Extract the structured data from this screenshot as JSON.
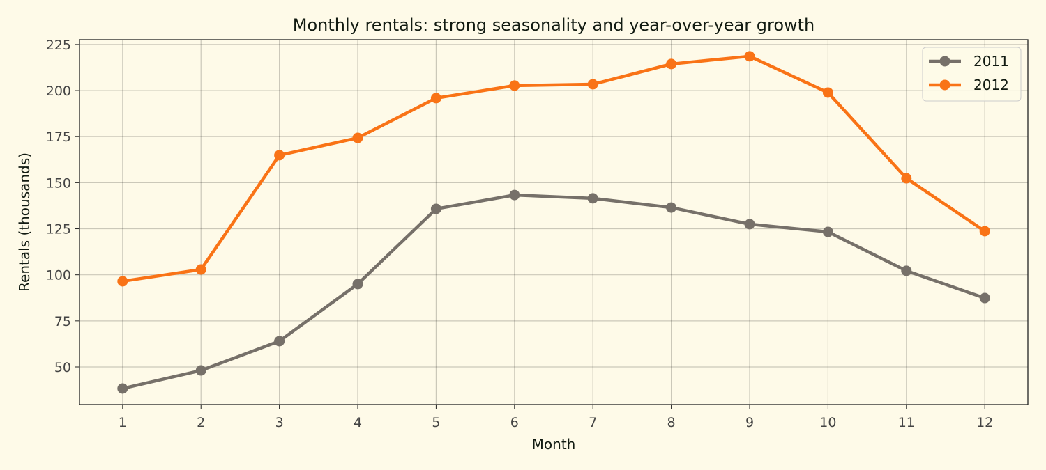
{
  "chart_data": {
    "type": "line",
    "title": "Monthly rentals: strong seasonality and year-over-year growth",
    "xlabel": "Month",
    "ylabel": "Rentals (thousands)",
    "x": [
      1,
      2,
      3,
      4,
      5,
      6,
      7,
      8,
      9,
      10,
      11,
      12
    ],
    "xticks": [
      "1",
      "2",
      "3",
      "4",
      "5",
      "6",
      "7",
      "8",
      "9",
      "10",
      "11",
      "12"
    ],
    "yticks": [
      50,
      75,
      100,
      125,
      150,
      175,
      200,
      225
    ],
    "xlim": [
      0.45,
      12.55
    ],
    "ylim": [
      29.6,
      227.6
    ],
    "grid": true,
    "legend_position": "top-right",
    "series": [
      {
        "name": "2011",
        "color": "#767069",
        "values": [
          38.3,
          48.1,
          64.0,
          95.0,
          135.8,
          143.3,
          141.5,
          136.5,
          127.5,
          123.3,
          102.2,
          87.4
        ]
      },
      {
        "name": "2012",
        "color": "#f97316",
        "values": [
          96.5,
          102.9,
          164.9,
          174.3,
          195.9,
          202.7,
          203.4,
          214.4,
          218.6,
          198.9,
          152.4,
          123.7
        ]
      }
    ]
  }
}
